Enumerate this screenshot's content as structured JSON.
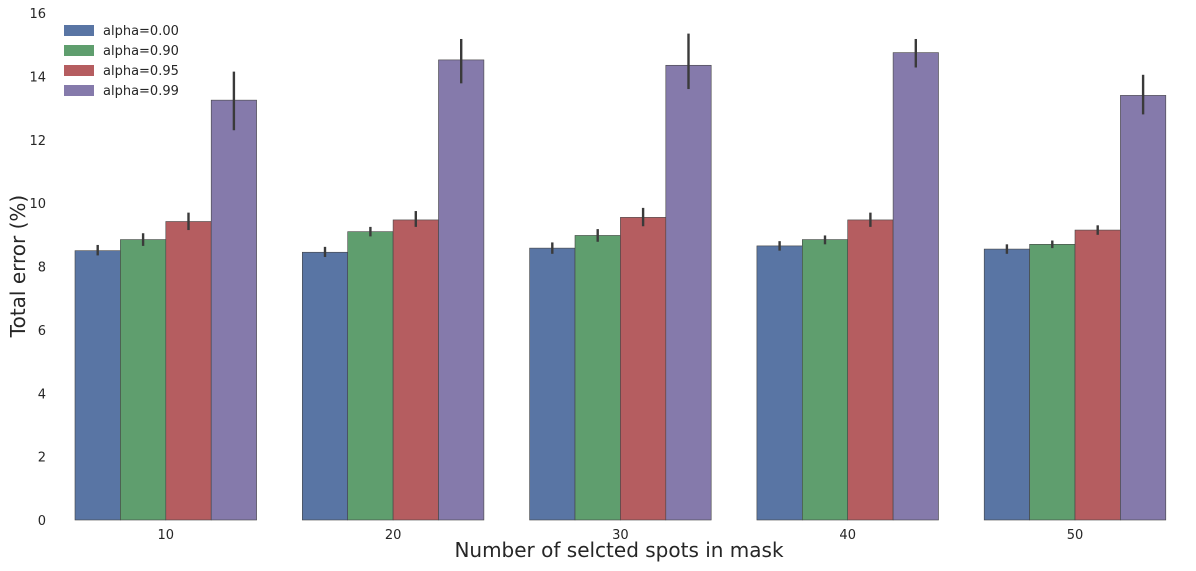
{
  "chart_data": {
    "type": "bar",
    "title": "",
    "xlabel": "Number of selcted spots in mask",
    "ylabel": "Total error (%)",
    "categories": [
      "10",
      "20",
      "30",
      "40",
      "50"
    ],
    "ylim": [
      0,
      16
    ],
    "yticks": [
      0,
      2,
      4,
      6,
      8,
      10,
      12,
      14,
      16
    ],
    "grid": false,
    "legend_position": "top-left",
    "series": [
      {
        "name": "alpha=0.00",
        "color": "#5975a4",
        "values": [
          8.5,
          8.45,
          8.58,
          8.65,
          8.55
        ],
        "err_low": [
          8.35,
          8.3,
          8.4,
          8.5,
          8.4
        ],
        "err_high": [
          8.68,
          8.62,
          8.76,
          8.8,
          8.7
        ]
      },
      {
        "name": "alpha=0.90",
        "color": "#5f9e6e",
        "values": [
          8.85,
          9.1,
          8.98,
          8.85,
          8.7
        ],
        "err_low": [
          8.65,
          8.95,
          8.78,
          8.7,
          8.58
        ],
        "err_high": [
          9.05,
          9.25,
          9.18,
          8.98,
          8.82
        ]
      },
      {
        "name": "alpha=0.95",
        "color": "#b55d60",
        "values": [
          9.42,
          9.47,
          9.55,
          9.47,
          9.15
        ],
        "err_low": [
          9.15,
          9.25,
          9.27,
          9.25,
          9.0
        ],
        "err_high": [
          9.7,
          9.75,
          9.85,
          9.7,
          9.3
        ]
      },
      {
        "name": "alpha=0.99",
        "color": "#857aab",
        "values": [
          13.25,
          14.52,
          14.35,
          14.75,
          13.4
        ],
        "err_low": [
          12.3,
          13.78,
          13.6,
          14.28,
          12.8
        ],
        "err_high": [
          14.15,
          15.18,
          15.35,
          15.18,
          14.05
        ]
      }
    ]
  }
}
